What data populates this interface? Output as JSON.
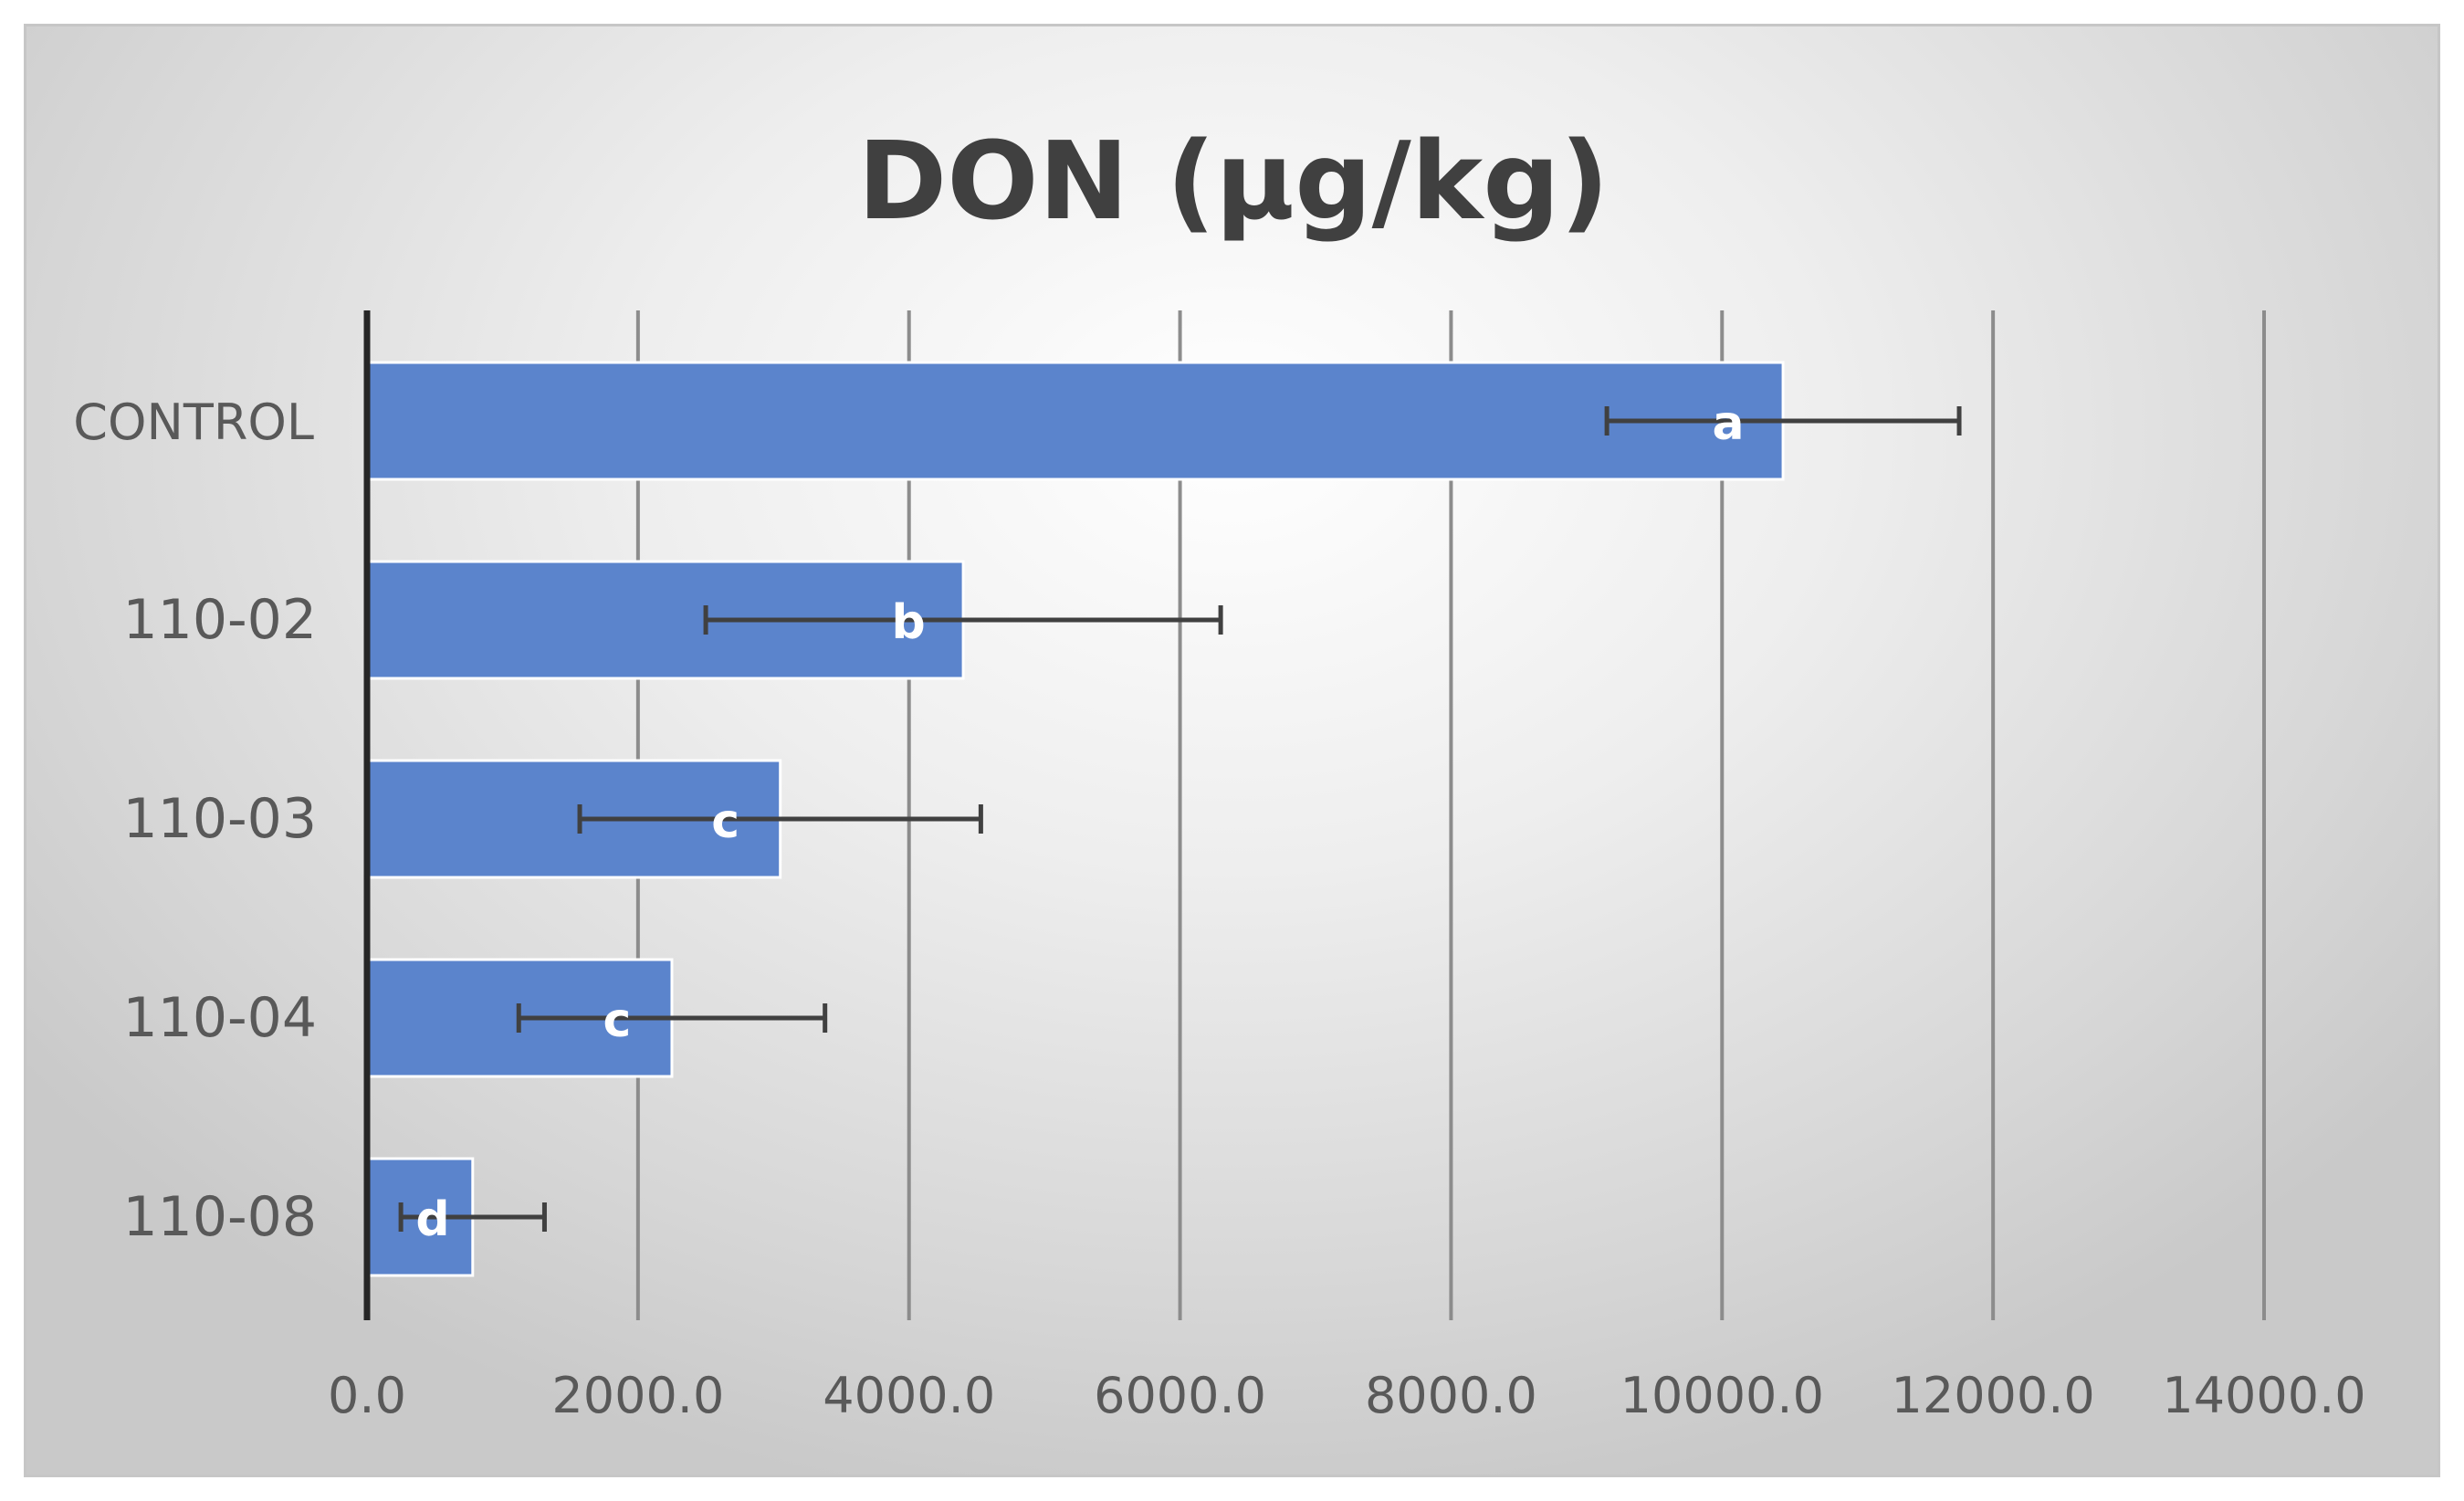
{
  "chart_data": {
    "type": "bar",
    "orientation": "horizontal",
    "title": "DON (µg/kg)",
    "xlabel": "",
    "ylabel": "",
    "categories": [
      "CONTROL",
      "110-02",
      "110-03",
      "110-04",
      "110-08"
    ],
    "series": [
      {
        "values": [
          10450,
          4400,
          3050,
          2250,
          780
        ],
        "error": [
          1300,
          1900,
          1480,
          1130,
          530
        ],
        "annotations": [
          "a",
          "b",
          "c",
          "c",
          "d"
        ]
      }
    ],
    "xlim": [
      0,
      14000
    ],
    "xticks": [
      0,
      2000,
      4000,
      6000,
      8000,
      10000,
      12000,
      14000
    ],
    "xtick_labels": [
      "0.0",
      "2000.0",
      "4000.0",
      "6000.0",
      "8000.0",
      "10000.0",
      "12000.0",
      "14000.0"
    ],
    "grid": "vertical",
    "legend": "none",
    "colors": {
      "bar": "#5b84cc",
      "bar_edge": "#ffffff",
      "error_bar": "#404040",
      "grid": "#8c8c8c",
      "axis": "#262626",
      "title": "#404040",
      "labels": "#595959"
    }
  }
}
